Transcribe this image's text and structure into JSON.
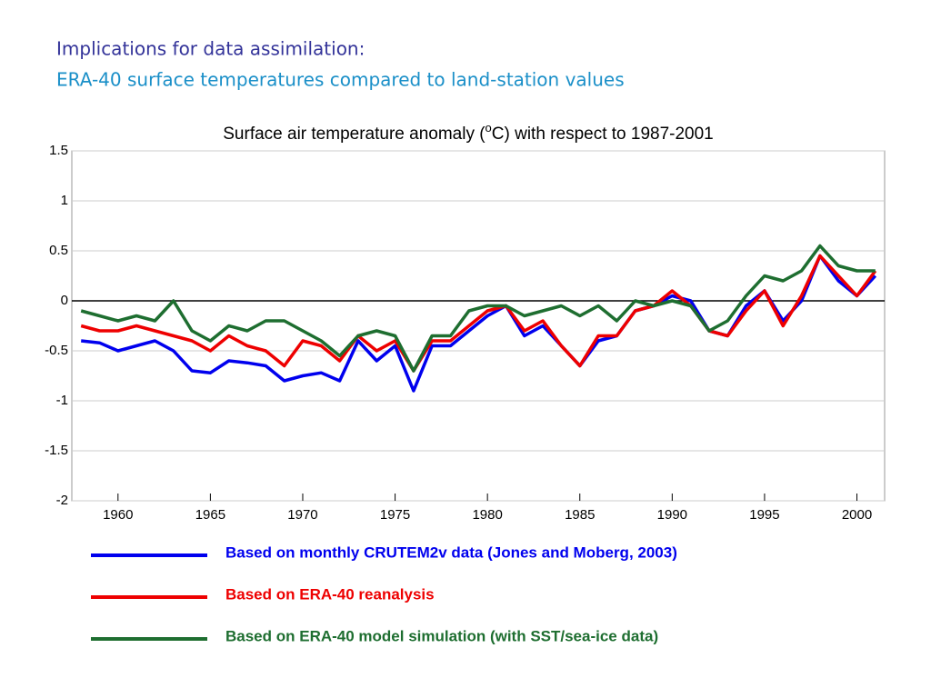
{
  "heading": [
    "Implications for data assimilation:",
    "ERA-40 surface temperatures compared to land-station values"
  ],
  "chart_data": {
    "type": "line",
    "title": [
      "Surface air temperature anomaly (",
      "o",
      "C) with respect to 1987-2001"
    ],
    "x": [
      1958,
      1959,
      1960,
      1961,
      1962,
      1963,
      1964,
      1965,
      1966,
      1967,
      1968,
      1969,
      1970,
      1971,
      1972,
      1973,
      1974,
      1975,
      1976,
      1977,
      1978,
      1979,
      1980,
      1981,
      1982,
      1983,
      1984,
      1985,
      1986,
      1987,
      1988,
      1989,
      1990,
      1991,
      1992,
      1993,
      1994,
      1995,
      1996,
      1997,
      1998,
      1999,
      2000,
      2001
    ],
    "series": [
      {
        "name": "Based on monthly CRUTEM2v data (Jones and Moberg, 2003)",
        "color": "#0000ee",
        "values": [
          -0.4,
          -0.42,
          -0.5,
          -0.45,
          -0.4,
          -0.5,
          -0.7,
          -0.72,
          -0.6,
          -0.62,
          -0.65,
          -0.8,
          -0.75,
          -0.72,
          -0.8,
          -0.4,
          -0.6,
          -0.45,
          -0.9,
          -0.45,
          -0.45,
          -0.3,
          -0.15,
          -0.05,
          -0.35,
          -0.25,
          -0.45,
          -0.65,
          -0.4,
          -0.35,
          -0.1,
          -0.05,
          0.05,
          0.0,
          -0.3,
          -0.35,
          -0.05,
          0.1,
          -0.2,
          0.0,
          0.45,
          0.2,
          0.05,
          0.25
        ]
      },
      {
        "name": "Based on ERA-40 reanalysis",
        "color": "#ee0000",
        "values": [
          -0.25,
          -0.3,
          -0.3,
          -0.25,
          -0.3,
          -0.35,
          -0.4,
          -0.5,
          -0.35,
          -0.45,
          -0.5,
          -0.65,
          -0.4,
          -0.45,
          -0.6,
          -0.35,
          -0.5,
          -0.4,
          -0.7,
          -0.4,
          -0.4,
          -0.25,
          -0.1,
          -0.05,
          -0.3,
          -0.2,
          -0.45,
          -0.65,
          -0.35,
          -0.35,
          -0.1,
          -0.05,
          0.1,
          -0.05,
          -0.3,
          -0.35,
          -0.1,
          0.1,
          -0.25,
          0.05,
          0.45,
          0.25,
          0.05,
          0.3
        ]
      },
      {
        "name": "Based on ERA-40 model simulation (with SST/sea-ice data)",
        "color": "#1e6e30",
        "values": [
          -0.1,
          -0.15,
          -0.2,
          -0.15,
          -0.2,
          0.0,
          -0.3,
          -0.4,
          -0.25,
          -0.3,
          -0.2,
          -0.2,
          -0.3,
          -0.4,
          -0.55,
          -0.35,
          -0.3,
          -0.35,
          -0.7,
          -0.35,
          -0.35,
          -0.1,
          -0.05,
          -0.05,
          -0.15,
          -0.1,
          -0.05,
          -0.15,
          -0.05,
          -0.2,
          0.0,
          -0.05,
          0.0,
          -0.05,
          -0.3,
          -0.2,
          0.05,
          0.25,
          0.2,
          0.3,
          0.55,
          0.35,
          0.3,
          0.3
        ]
      }
    ],
    "xlim": [
      1957.5,
      2001.5
    ],
    "xticks": [
      1960,
      1965,
      1970,
      1975,
      1980,
      1985,
      1990,
      1995,
      2000
    ],
    "ylim": [
      -2,
      1.5
    ],
    "yticks": [
      -2,
      -1.5,
      -1,
      -0.5,
      0,
      0.5,
      1,
      1.5
    ],
    "grid": true
  }
}
